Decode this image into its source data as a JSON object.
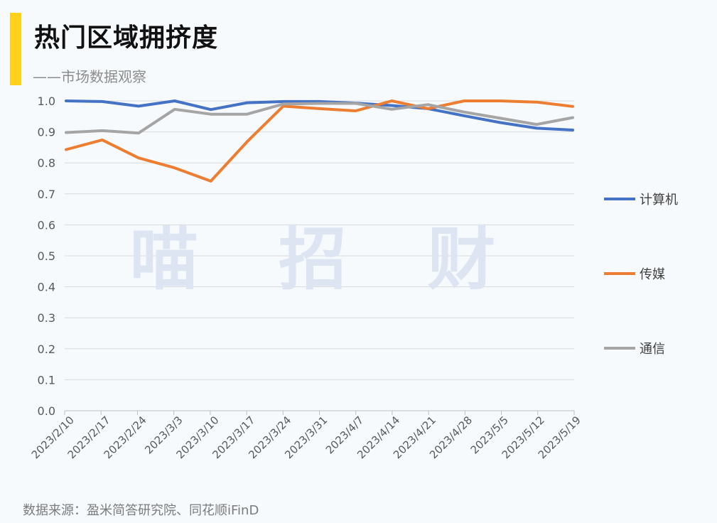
{
  "header": {
    "title": "热门区域拥挤度",
    "subtitle": "——市场数据观察"
  },
  "footer": {
    "source": "数据来源：盈米简答研究院、同花顺iFinD"
  },
  "watermark": {
    "text": "喵 招 财"
  },
  "colors": {
    "accent": "#ffd11a",
    "computer": "#4472c4",
    "media": "#ed7d31",
    "telecom": "#a5a5a5"
  },
  "chart_data": {
    "type": "line",
    "title": "热门区域拥挤度",
    "xlabel": "",
    "ylabel": "",
    "ylim": [
      0,
      1.0
    ],
    "yticks": [
      "0.0",
      "0.1",
      "0.2",
      "0.3",
      "0.4",
      "0.5",
      "0.6",
      "0.7",
      "0.8",
      "0.9",
      "1.0"
    ],
    "grid": true,
    "legend_position": "right",
    "categories": [
      "2023/2/10",
      "2023/2/17",
      "2023/2/24",
      "2023/3/3",
      "2023/3/10",
      "2023/3/17",
      "2023/3/24",
      "2023/3/31",
      "2023/4/7",
      "2023/4/14",
      "2023/4/21",
      "2023/4/28",
      "2023/5/5",
      "2023/5/12",
      "2023/5/19"
    ],
    "series": [
      {
        "name": "计算机",
        "color": "#4472c4",
        "values": [
          1.0,
          0.998,
          0.983,
          1.0,
          0.972,
          0.994,
          0.998,
          0.998,
          0.993,
          0.985,
          0.975,
          0.952,
          0.93,
          0.912,
          0.906
        ]
      },
      {
        "name": "传媒",
        "color": "#ed7d31",
        "values": [
          0.843,
          0.874,
          0.816,
          0.784,
          0.741,
          0.868,
          0.983,
          0.975,
          0.968,
          1.0,
          0.975,
          1.0,
          1.0,
          0.996,
          0.982
        ]
      },
      {
        "name": "通信",
        "color": "#a5a5a5",
        "values": [
          0.898,
          0.904,
          0.896,
          0.973,
          0.957,
          0.957,
          0.99,
          0.992,
          0.992,
          0.973,
          0.988,
          0.964,
          0.944,
          0.924,
          0.946
        ]
      }
    ]
  }
}
